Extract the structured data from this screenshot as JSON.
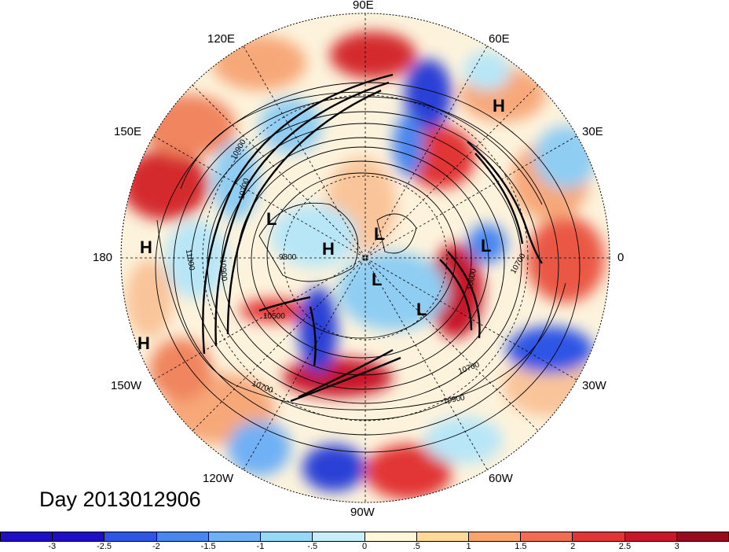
{
  "title": "Day 2013012906",
  "longitude_labels": {
    "lon_90e": "90E",
    "lon_60e": "60E",
    "lon_30e": "30E",
    "lon_0": "0",
    "lon_30w": "30W",
    "lon_60w": "60W",
    "lon_90w": "90W",
    "lon_120w": "120W",
    "lon_150w": "150W",
    "lon_180": "180",
    "lon_150e": "150E",
    "lon_120e": "120E"
  },
  "pressure_centers": [
    "H",
    "L",
    "L",
    "H",
    "L",
    "L",
    "L",
    "H",
    "H"
  ],
  "contour_labels": [
    "10900",
    "10700",
    "10500",
    "9800",
    "10700",
    "10600",
    "10700",
    "10900",
    "10700",
    "11000",
    "10900"
  ],
  "colorbar": {
    "colors": [
      "#1f0fc4",
      "#2f55e6",
      "#4a86f0",
      "#6fb0f5",
      "#96d8f8",
      "#c6effa",
      "#fff7d8",
      "#ffd99a",
      "#f9a46e",
      "#f26c51",
      "#e23536",
      "#c8172b",
      "#9a0a1f"
    ],
    "ticks": [
      "-3",
      "-2.5",
      "-2",
      "-1.5",
      "-1",
      "-.5",
      "0",
      ".5",
      "1",
      "1.5",
      "2",
      "2.5",
      "3"
    ]
  },
  "anomaly_colors": {
    "strong_negative": "#2a3fd6",
    "weak_negative": "#8fcdf3",
    "neutral": "#fdf3dc",
    "weak_positive": "#f7a879",
    "strong_positive": "#c9162b"
  }
}
